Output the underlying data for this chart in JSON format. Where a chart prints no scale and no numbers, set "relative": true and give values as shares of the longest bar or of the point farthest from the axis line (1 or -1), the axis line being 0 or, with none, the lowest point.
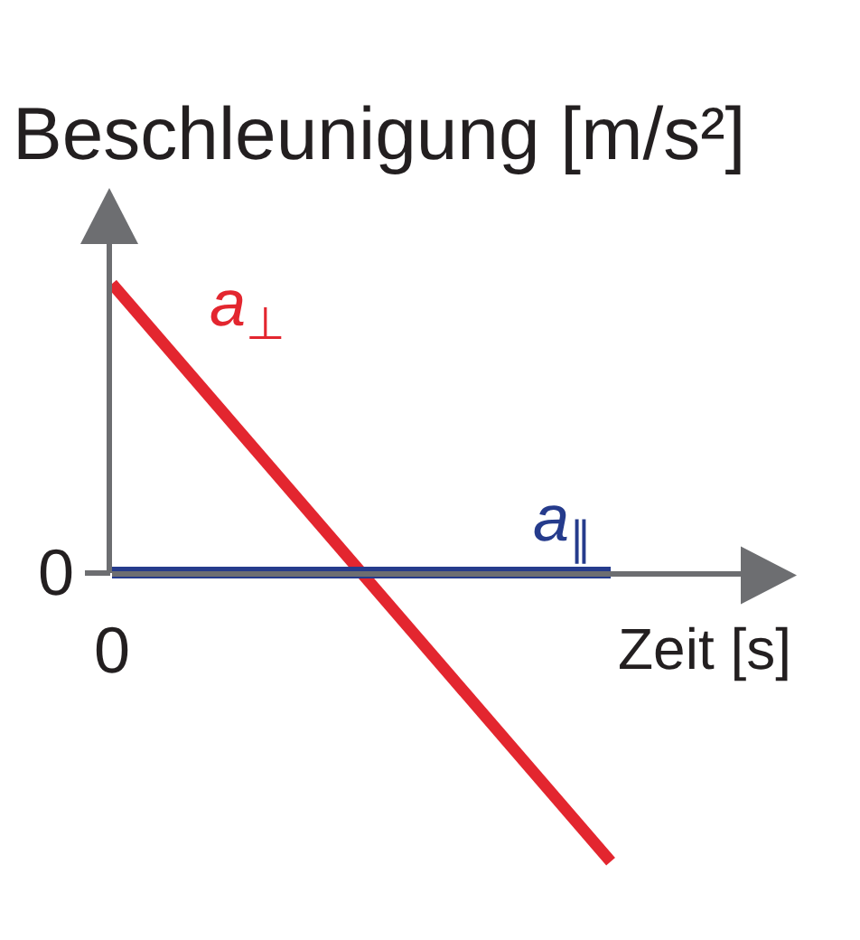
{
  "chart_data": {
    "type": "line",
    "xlabel": "Zeit [s]",
    "ylabel": "Beschleunigung [m/s²]",
    "categories": [
      null,
      null
    ],
    "relative": true,
    "series": [
      {
        "name": "a$_{⊥}$",
        "color": "#e3262f",
        "values": [
          1,
          -1
        ]
      },
      {
        "name": "a$_{∥}$",
        "color": "#253b8c",
        "values": [
          0,
          0
        ]
      }
    ],
    "annotations": [
      "0",
      "0"
    ],
    "legend": false,
    "marker": "none",
    "line_style": "solid"
  }
}
